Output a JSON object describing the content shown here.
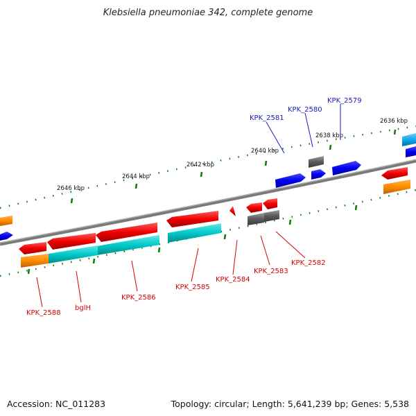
{
  "title": "Klebsiella pneumoniae 342, complete genome",
  "footer": {
    "accession": "Accession: NC_011283",
    "summary": "Topology: circular; Length: 5,641,239 bp; Genes: 5,538"
  },
  "ticks": [
    "2636 kbp",
    "2638 kbp",
    "2640 kbp",
    "2642 kbp",
    "2644 kbp",
    "2646 kbp"
  ],
  "genes_labeled": {
    "top": [
      "KPK_2579",
      "KPK_2580",
      "KPK_2581"
    ],
    "bottom": [
      "KPK_2582",
      "KPK_2583",
      "KPK_2584",
      "KPK_2585",
      "KPK_2586",
      "bglH",
      "KPK_2588"
    ]
  },
  "colors": {
    "cds": "#ee0000",
    "cds_blue": "#0000ee",
    "gene_grey": "#5a5a5a",
    "orange": "#ff8c00",
    "teal": "#00c8c8",
    "backbone": "#808080",
    "tick": "#0a7a0a",
    "label_red": "#d40000",
    "label_blue": "#1a1ab8"
  }
}
